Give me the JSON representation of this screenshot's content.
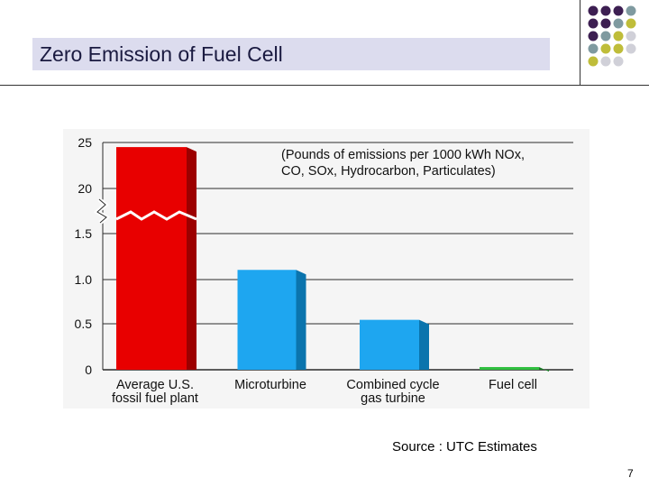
{
  "slide": {
    "title": "Zero Emission of Fuel Cell",
    "source": "Source : UTC Estimates",
    "page_number": "7"
  },
  "colors": {
    "title_bg": "#dcdcee",
    "dot_dark": "#3d1f52",
    "dot_teal": "#7f9aa0",
    "dot_olive": "#bfbd3a",
    "dot_light": "#d0d0d8",
    "bar_red": "#e80000",
    "bar_blue": "#1ea6f0",
    "bar_green": "#30c040",
    "chart_bg": "#f5f5f5"
  },
  "decor": {
    "dot_grid": [
      [
        "dark",
        "dark",
        "dark",
        "teal"
      ],
      [
        "dark",
        "dark",
        "teal",
        "olive"
      ],
      [
        "dark",
        "teal",
        "olive",
        "light"
      ],
      [
        "teal",
        "olive",
        "olive",
        "light"
      ],
      [
        "olive",
        "light",
        "light",
        "none"
      ]
    ]
  },
  "chart_data": {
    "type": "bar",
    "title": "",
    "annotation": [
      "(Pounds of emissions per 1000 kWh NOx,",
      "CO, SOx, Hydrocarbon, Particulates)"
    ],
    "xlabel": "",
    "ylabel": "",
    "y_ticks": [
      "25",
      "20",
      "1.5",
      "1.0",
      "0.5",
      "0"
    ],
    "y_scale": "broken axis between 1.5 and 20",
    "categories": [
      [
        "Average U.S.",
        "fossil fuel plant"
      ],
      [
        "Microturbine"
      ],
      [
        "Combined cycle",
        "gas turbine"
      ],
      [
        "Fuel cell"
      ]
    ],
    "values": [
      24.5,
      1.1,
      0.55,
      0.03
    ],
    "bar_colors": [
      "red",
      "blue",
      "blue",
      "green"
    ],
    "grid": true
  }
}
